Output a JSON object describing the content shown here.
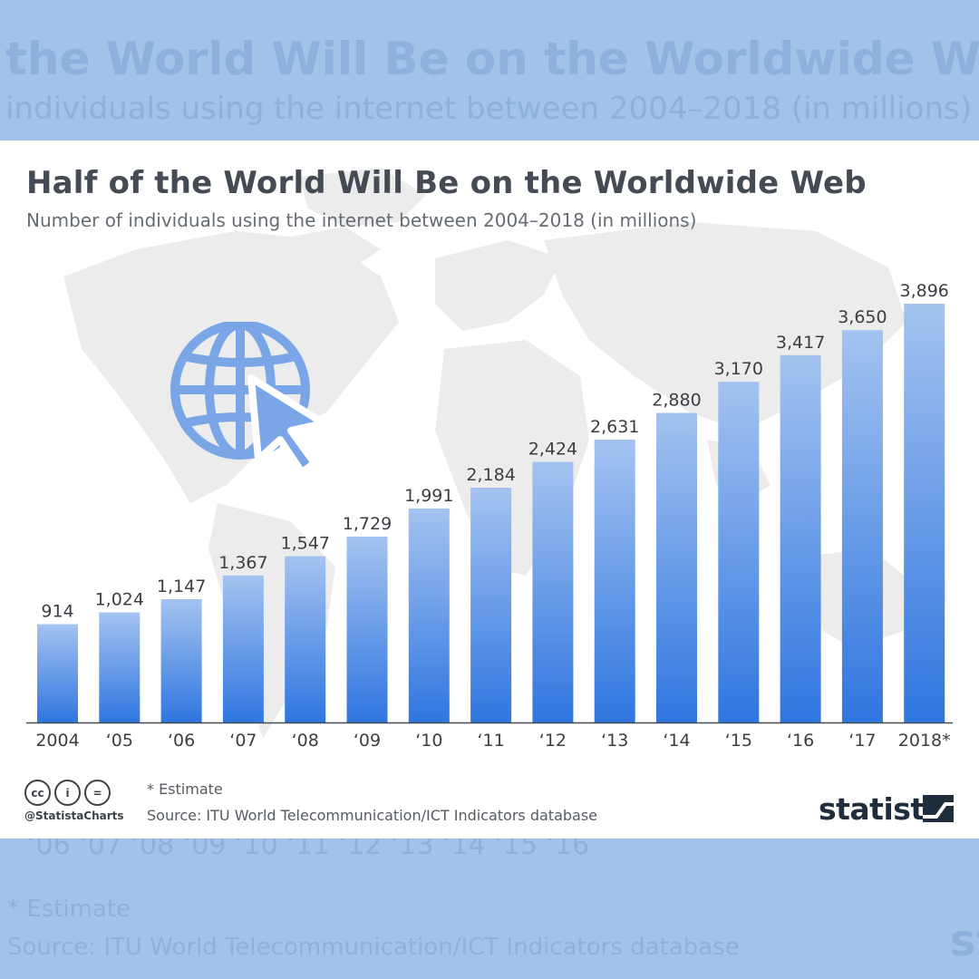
{
  "background": {
    "title": "the World Will Be on the Worldwide Web",
    "subtitle": "individuals using the internet between 2004–2018 (in millions)",
    "ticks": "‘06 ‘07 ‘08 ‘09 ‘10 ‘11 ‘12 ‘13 ‘14 ‘15 ‘16",
    "note": "* Estimate",
    "source": "Source: ITU World Telecommunication/ICT Indicators database",
    "logo": "st"
  },
  "header": {
    "title": "Half of the World Will Be on the Worldwide Web",
    "subtitle": "Number of individuals using the internet between 2004–2018 (in millions)"
  },
  "footer": {
    "note": "* Estimate",
    "source": "Source: ITU World Telecommunication/ICT Indicators database",
    "handle": "@StatistaCharts",
    "logo": "statista",
    "cc_icons": [
      "cc",
      "i",
      "="
    ]
  },
  "colors": {
    "bar_top": "#a4c3f0",
    "bar_bottom": "#2f76e0",
    "icon": "#7aa6e8",
    "map": "#ececec"
  },
  "chart_data": {
    "type": "bar",
    "categories": [
      "2004",
      "‘05",
      "‘06",
      "‘07",
      "‘08",
      "‘09",
      "‘10",
      "‘11",
      "‘12",
      "‘13",
      "‘14",
      "‘15",
      "‘16",
      "‘17",
      "2018*"
    ],
    "values": [
      914,
      1024,
      1147,
      1367,
      1547,
      1729,
      1991,
      2184,
      2424,
      2631,
      2880,
      3170,
      3417,
      3650,
      3896
    ],
    "value_labels": [
      "914",
      "1,024",
      "1,147",
      "1,367",
      "1,547",
      "1,729",
      "1,991",
      "2,184",
      "2,424",
      "2,631",
      "2,880",
      "3,170",
      "3,417",
      "3,650",
      "3,896"
    ],
    "title": "Half of the World Will Be on the Worldwide Web",
    "subtitle": "Number of individuals using the internet between 2004–2018 (in millions)",
    "xlabel": "",
    "ylabel": "",
    "ylim": [
      0,
      3896
    ],
    "grid": false,
    "legend": "none"
  }
}
